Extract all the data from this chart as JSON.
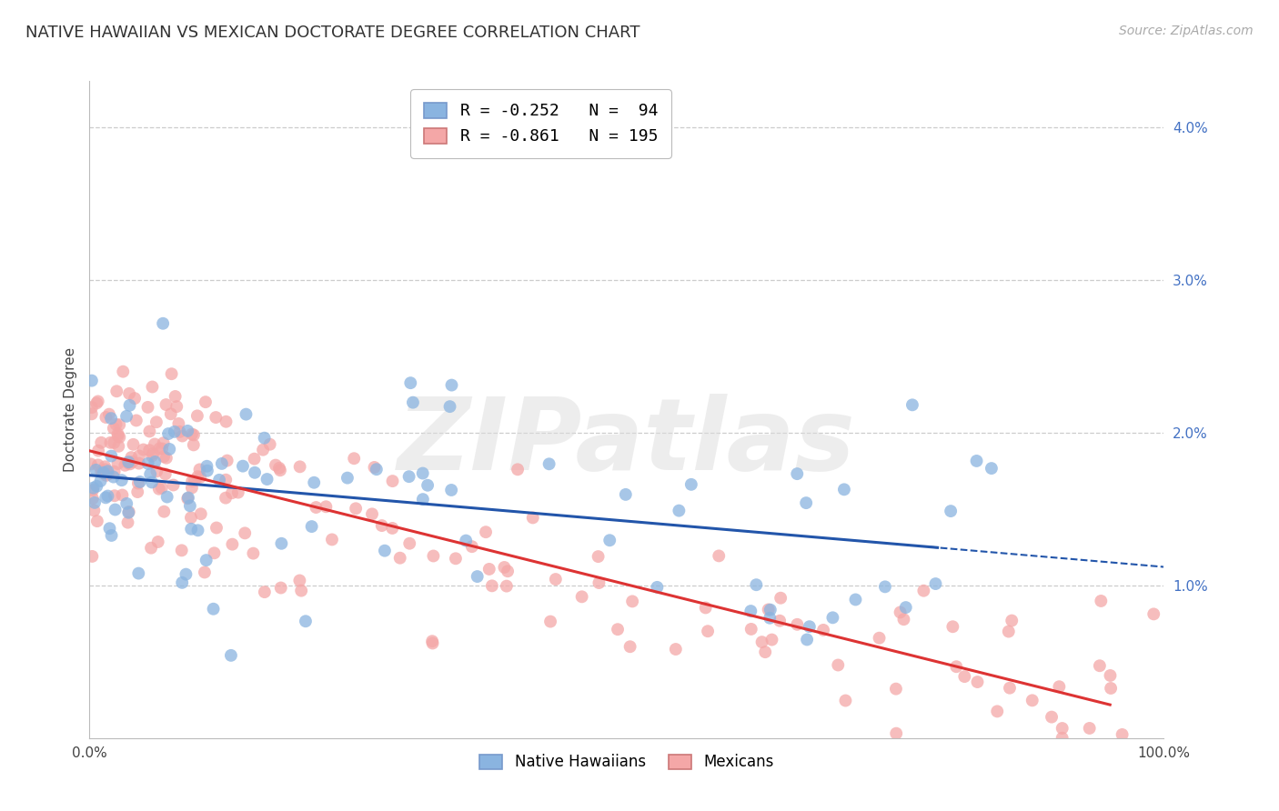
{
  "title": "NATIVE HAWAIIAN VS MEXICAN DOCTORATE DEGREE CORRELATION CHART",
  "source": "Source: ZipAtlas.com",
  "ylabel": "Doctorate Degree",
  "xlim": [
    0.0,
    100.0
  ],
  "ylim": [
    0.0,
    4.3
  ],
  "blue_R": -0.252,
  "blue_N": 94,
  "pink_R": -0.861,
  "pink_N": 195,
  "blue_color": "#8ab4e0",
  "pink_color": "#f4a7a7",
  "blue_line_color": "#2255aa",
  "pink_line_color": "#dd3333",
  "legend_label_blue": "Native Hawaiians",
  "legend_label_pink": "Mexicans",
  "watermark": "ZIPatlas",
  "title_fontsize": 13,
  "axis_label_fontsize": 11,
  "tick_label_fontsize": 11,
  "source_fontsize": 10,
  "blue_intercept": 1.72,
  "blue_slope": -0.006,
  "pink_intercept": 1.88,
  "pink_slope": -0.0175,
  "tick_color": "#4472c4"
}
